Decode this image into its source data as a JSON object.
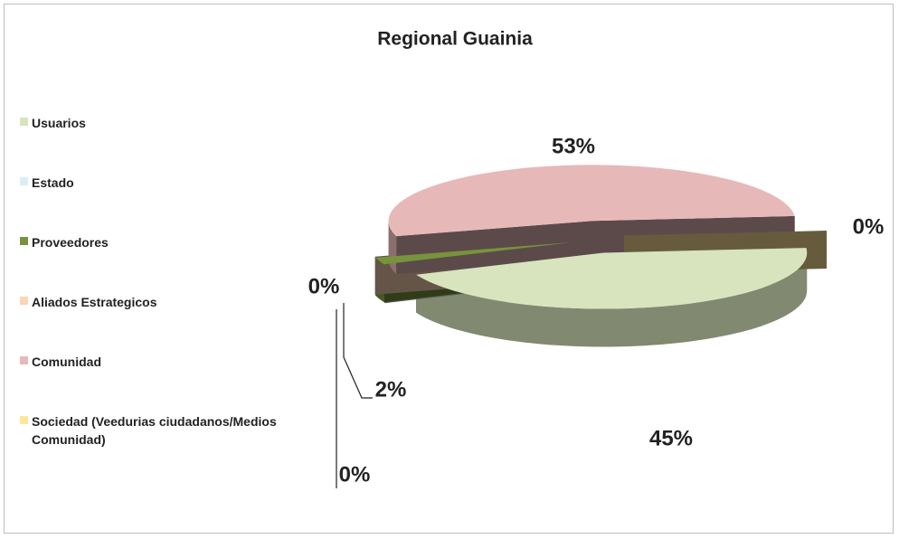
{
  "chart_data": {
    "type": "pie",
    "title": "Regional Guainia",
    "categories": [
      "Usuarios",
      "Estado",
      "Proveedores",
      "Aliados Estrategicos",
      "Comunidad",
      "Sociedad (Veedurias ciudadanos/Medios Comunidad)"
    ],
    "values": [
      45,
      0,
      2,
      0,
      53,
      0
    ],
    "value_labels": [
      "45%",
      "0%",
      "2%",
      "0%",
      "53%",
      "0%"
    ],
    "colors": [
      "#d7e4bd",
      "#dbeef4",
      "#77933c",
      "#fcd5b5",
      "#e6b9b8",
      "#ffe699"
    ],
    "legend": "left"
  }
}
